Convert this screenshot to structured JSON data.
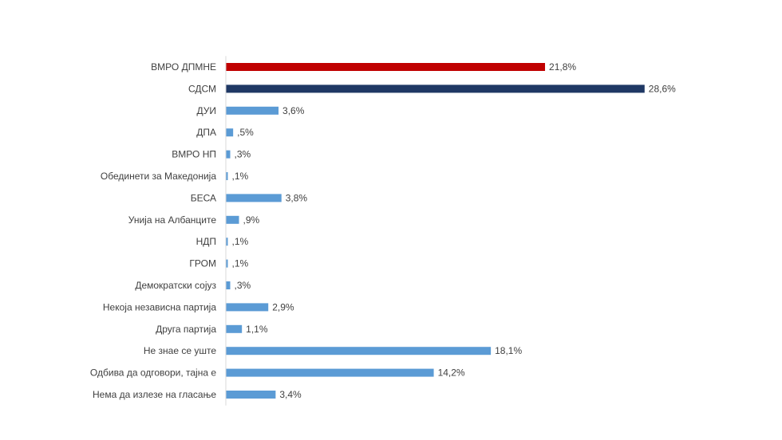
{
  "chart_data": {
    "type": "bar",
    "orientation": "horizontal",
    "categories": [
      "ВМРО ДПМНЕ",
      "СДСМ",
      "ДУИ",
      "ДПА",
      "ВМРО НП",
      "Обединети за Македонија",
      "БЕСА",
      "Унија на Албанците",
      "НДП",
      "ГРОМ",
      "Демократски сојуз",
      "Некоја независна партија",
      "Друга партија",
      "Не знае се уште",
      "Одбива да одговори, тајна е",
      "Нема да излезе на гласање"
    ],
    "values": [
      21.8,
      28.6,
      3.6,
      0.5,
      0.3,
      0.1,
      3.8,
      0.9,
      0.1,
      0.1,
      0.3,
      2.9,
      1.1,
      18.1,
      14.2,
      3.4
    ],
    "value_labels": [
      "21,8%",
      "28,6%",
      "3,6%",
      ",5%",
      ",3%",
      ",1%",
      "3,8%",
      ",9%",
      ",1%",
      ",1%",
      ",3%",
      "2,9%",
      "1,1%",
      "18,1%",
      "14,2%",
      "3,4%"
    ],
    "colors": [
      "#c00000",
      "#1f3864",
      "#5b9bd5",
      "#5b9bd5",
      "#5b9bd5",
      "#5b9bd5",
      "#5b9bd5",
      "#5b9bd5",
      "#5b9bd5",
      "#5b9bd5",
      "#5b9bd5",
      "#5b9bd5",
      "#5b9bd5",
      "#5b9bd5",
      "#5b9bd5",
      "#5b9bd5"
    ],
    "axis_color": "#d9d9d9",
    "grid": false,
    "legend": "none",
    "xlim": [
      0,
      30
    ]
  }
}
